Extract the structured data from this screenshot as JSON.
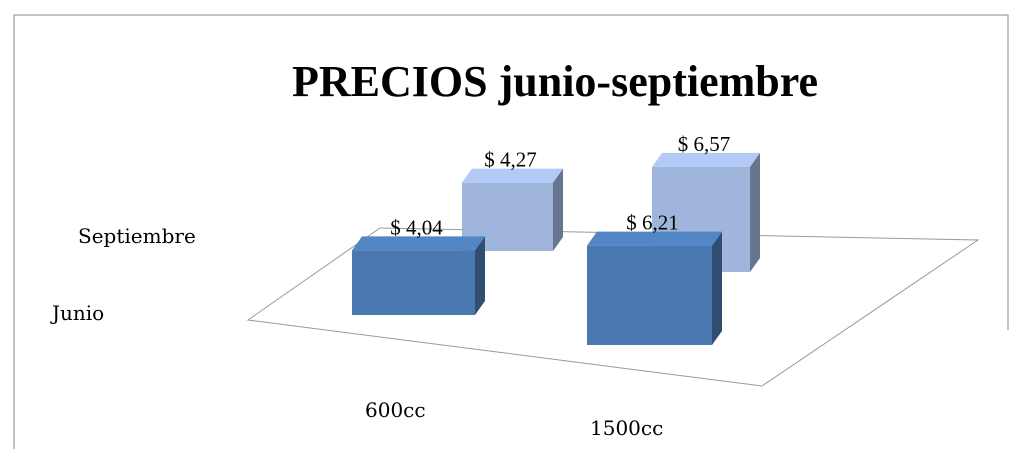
{
  "chart_data": {
    "type": "bar3d",
    "title": "PRECIOS junio-septiembre",
    "categories": [
      "600cc",
      "1500cc"
    ],
    "series": [
      {
        "name": "Junio",
        "color": "#4a78b0",
        "values": [
          4.04,
          6.21
        ],
        "value_labels": [
          "$ 4,04",
          "$ 6,21"
        ]
      },
      {
        "name": "Septiembre",
        "color": "#9fb5dc",
        "values": [
          4.27,
          6.57
        ],
        "value_labels": [
          "$ 4,27",
          "$ 6,57"
        ]
      }
    ]
  }
}
